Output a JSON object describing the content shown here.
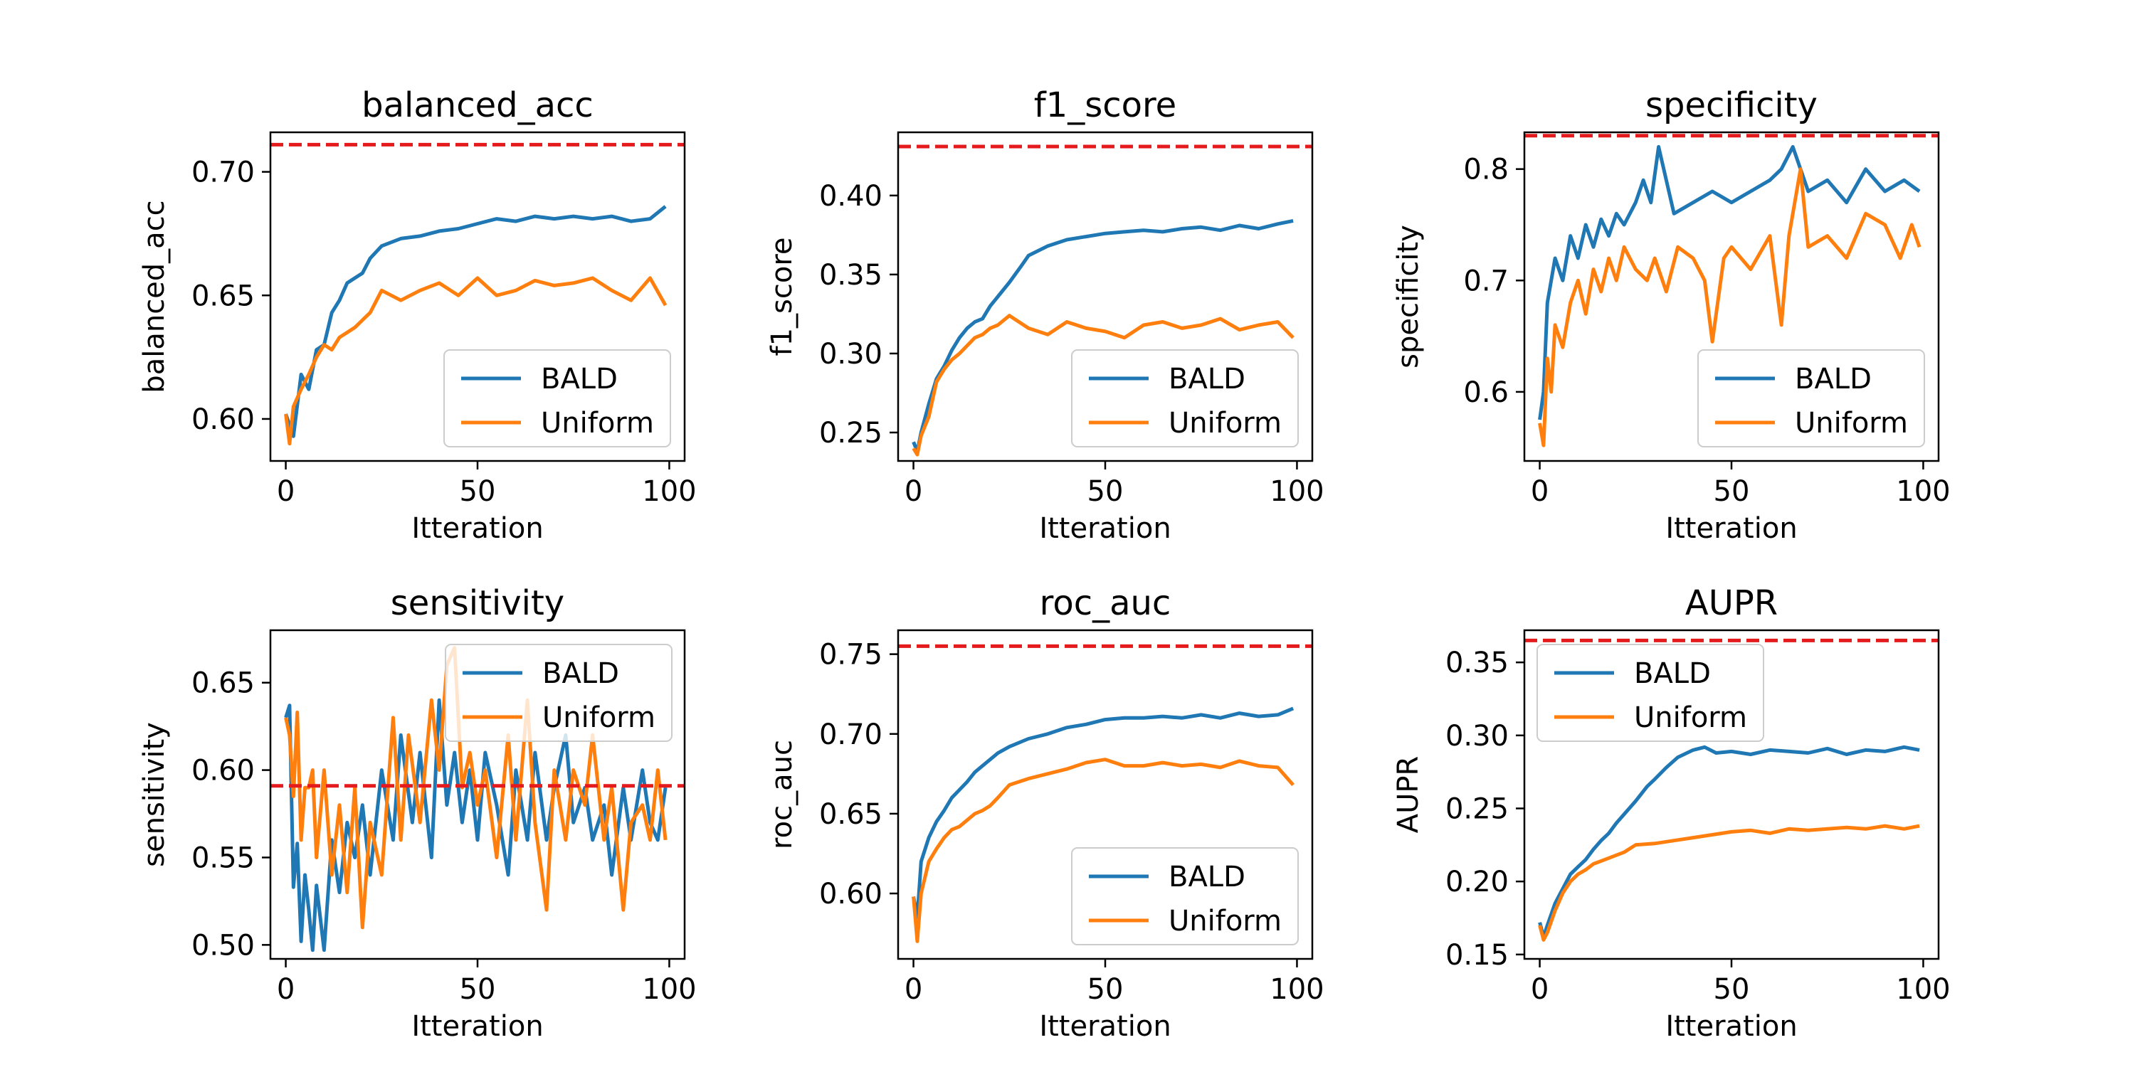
{
  "figure": {
    "legend_labels": [
      "BALD",
      "Uniform"
    ],
    "colors": {
      "BALD": "#1f77b4",
      "Uniform": "#ff7f0e",
      "reference": "#e41a1c"
    }
  },
  "chart_data": [
    {
      "type": "line",
      "title": "balanced_acc",
      "xlabel": "Itteration",
      "ylabel": "balanced_acc",
      "xlim": [
        -4,
        104
      ],
      "ylim": [
        0.583,
        0.716
      ],
      "xticks": [
        0,
        50,
        100
      ],
      "yticks": [
        0.6,
        0.65,
        0.7
      ],
      "ytick_labels": [
        "0.60",
        "0.65",
        "0.70"
      ],
      "legend_loc": "lower-right",
      "reference_line": 0.711,
      "series": [
        {
          "name": "BALD",
          "x": [
            0,
            2,
            4,
            6,
            8,
            10,
            12,
            14,
            16,
            18,
            20,
            22,
            25,
            30,
            35,
            40,
            45,
            50,
            55,
            60,
            65,
            70,
            75,
            80,
            85,
            90,
            95,
            99
          ],
          "y": [
            0.602,
            0.593,
            0.618,
            0.612,
            0.628,
            0.63,
            0.643,
            0.648,
            0.655,
            0.657,
            0.659,
            0.665,
            0.67,
            0.673,
            0.674,
            0.676,
            0.677,
            0.679,
            0.681,
            0.68,
            0.682,
            0.681,
            0.682,
            0.681,
            0.682,
            0.68,
            0.681,
            0.686
          ]
        },
        {
          "name": "Uniform",
          "x": [
            0,
            1,
            2,
            4,
            6,
            8,
            10,
            12,
            14,
            16,
            18,
            20,
            22,
            25,
            30,
            35,
            40,
            45,
            50,
            55,
            60,
            65,
            70,
            75,
            80,
            85,
            90,
            95,
            99
          ],
          "y": [
            0.602,
            0.59,
            0.605,
            0.612,
            0.618,
            0.625,
            0.63,
            0.628,
            0.633,
            0.635,
            0.637,
            0.64,
            0.643,
            0.652,
            0.648,
            0.652,
            0.655,
            0.65,
            0.657,
            0.65,
            0.652,
            0.656,
            0.654,
            0.655,
            0.657,
            0.652,
            0.648,
            0.657,
            0.646
          ]
        }
      ]
    },
    {
      "type": "line",
      "title": "f1_score",
      "xlabel": "Itteration",
      "ylabel": "f1_score",
      "xlim": [
        -4,
        104
      ],
      "ylim": [
        0.232,
        0.44
      ],
      "xticks": [
        0,
        50,
        100
      ],
      "yticks": [
        0.25,
        0.3,
        0.35,
        0.4
      ],
      "ytick_labels": [
        "0.25",
        "0.30",
        "0.35",
        "0.40"
      ],
      "legend_loc": "lower-right",
      "reference_line": 0.431,
      "series": [
        {
          "name": "BALD",
          "x": [
            0,
            1,
            2,
            4,
            6,
            8,
            10,
            12,
            14,
            16,
            18,
            20,
            22,
            25,
            28,
            30,
            35,
            40,
            45,
            50,
            55,
            60,
            65,
            70,
            75,
            80,
            85,
            90,
            95,
            99
          ],
          "y": [
            0.244,
            0.238,
            0.25,
            0.268,
            0.284,
            0.292,
            0.302,
            0.31,
            0.316,
            0.32,
            0.322,
            0.33,
            0.336,
            0.345,
            0.355,
            0.362,
            0.368,
            0.372,
            0.374,
            0.376,
            0.377,
            0.378,
            0.377,
            0.379,
            0.38,
            0.378,
            0.381,
            0.379,
            0.382,
            0.384
          ]
        },
        {
          "name": "Uniform",
          "x": [
            0,
            1,
            2,
            4,
            6,
            8,
            10,
            12,
            14,
            16,
            18,
            20,
            22,
            25,
            30,
            35,
            40,
            45,
            50,
            55,
            60,
            65,
            70,
            75,
            80,
            85,
            90,
            95,
            99
          ],
          "y": [
            0.24,
            0.236,
            0.248,
            0.26,
            0.282,
            0.29,
            0.296,
            0.3,
            0.305,
            0.31,
            0.312,
            0.316,
            0.318,
            0.324,
            0.316,
            0.312,
            0.32,
            0.316,
            0.314,
            0.31,
            0.318,
            0.32,
            0.316,
            0.318,
            0.322,
            0.315,
            0.318,
            0.32,
            0.31
          ]
        }
      ]
    },
    {
      "type": "line",
      "title": "specificity",
      "xlabel": "Itteration",
      "ylabel": "specificity",
      "xlim": [
        -4,
        104
      ],
      "ylim": [
        0.538,
        0.833
      ],
      "xticks": [
        0,
        50,
        100
      ],
      "yticks": [
        0.6,
        0.7,
        0.8
      ],
      "ytick_labels": [
        "0.6",
        "0.7",
        "0.8"
      ],
      "legend_loc": "lower-right",
      "reference_line": 0.83,
      "series": [
        {
          "name": "BALD",
          "x": [
            0,
            1,
            2,
            4,
            6,
            8,
            10,
            12,
            14,
            16,
            18,
            20,
            22,
            25,
            27,
            29,
            31,
            35,
            40,
            45,
            50,
            55,
            60,
            63,
            66,
            70,
            75,
            80,
            85,
            90,
            95,
            99
          ],
          "y": [
            0.575,
            0.6,
            0.68,
            0.72,
            0.7,
            0.74,
            0.72,
            0.75,
            0.73,
            0.755,
            0.74,
            0.76,
            0.75,
            0.77,
            0.79,
            0.77,
            0.82,
            0.76,
            0.77,
            0.78,
            0.77,
            0.78,
            0.79,
            0.8,
            0.82,
            0.78,
            0.79,
            0.77,
            0.8,
            0.78,
            0.79,
            0.78
          ]
        },
        {
          "name": "Uniform",
          "x": [
            0,
            1,
            2,
            3,
            4,
            6,
            8,
            10,
            12,
            14,
            16,
            18,
            20,
            22,
            25,
            28,
            30,
            33,
            36,
            40,
            43,
            45,
            48,
            50,
            55,
            60,
            63,
            65,
            68,
            70,
            75,
            80,
            85,
            90,
            94,
            97,
            99
          ],
          "y": [
            0.572,
            0.552,
            0.63,
            0.6,
            0.66,
            0.64,
            0.68,
            0.7,
            0.67,
            0.71,
            0.69,
            0.72,
            0.7,
            0.73,
            0.71,
            0.7,
            0.72,
            0.69,
            0.73,
            0.72,
            0.7,
            0.645,
            0.72,
            0.73,
            0.71,
            0.74,
            0.66,
            0.74,
            0.8,
            0.73,
            0.74,
            0.72,
            0.76,
            0.75,
            0.72,
            0.75,
            0.73
          ]
        }
      ]
    },
    {
      "type": "line",
      "title": "sensitivity",
      "xlabel": "Itteration",
      "ylabel": "sensitivity",
      "xlim": [
        -4,
        104
      ],
      "ylim": [
        0.492,
        0.68
      ],
      "xticks": [
        0,
        50,
        100
      ],
      "yticks": [
        0.5,
        0.55,
        0.6,
        0.65
      ],
      "ytick_labels": [
        "0.50",
        "0.55",
        "0.60",
        "0.65"
      ],
      "legend_loc": "top-right",
      "reference_line": 0.591,
      "series": [
        {
          "name": "BALD",
          "x": [
            0,
            1,
            2,
            3,
            4,
            5,
            6,
            7,
            8,
            10,
            12,
            14,
            16,
            18,
            20,
            22,
            25,
            28,
            30,
            33,
            35,
            38,
            40,
            42,
            44,
            46,
            48,
            50,
            52,
            55,
            58,
            60,
            63,
            65,
            68,
            70,
            73,
            75,
            78,
            80,
            83,
            85,
            88,
            90,
            93,
            95,
            97,
            99
          ],
          "y": [
            0.63,
            0.637,
            0.533,
            0.558,
            0.502,
            0.54,
            0.52,
            0.497,
            0.534,
            0.497,
            0.56,
            0.53,
            0.57,
            0.55,
            0.58,
            0.54,
            0.6,
            0.56,
            0.62,
            0.57,
            0.61,
            0.55,
            0.64,
            0.58,
            0.61,
            0.57,
            0.6,
            0.56,
            0.61,
            0.58,
            0.54,
            0.6,
            0.56,
            0.61,
            0.56,
            0.59,
            0.62,
            0.57,
            0.59,
            0.56,
            0.58,
            0.54,
            0.59,
            0.56,
            0.6,
            0.57,
            0.56,
            0.59
          ]
        },
        {
          "name": "Uniform",
          "x": [
            0,
            1,
            2,
            3,
            4,
            5,
            6,
            7,
            8,
            10,
            12,
            14,
            16,
            18,
            20,
            22,
            25,
            28,
            30,
            32,
            35,
            38,
            40,
            42,
            44,
            46,
            48,
            50,
            52,
            55,
            58,
            60,
            63,
            65,
            68,
            70,
            73,
            75,
            78,
            80,
            83,
            85,
            88,
            90,
            93,
            95,
            97,
            99
          ],
          "y": [
            0.63,
            0.62,
            0.585,
            0.633,
            0.56,
            0.59,
            0.59,
            0.6,
            0.55,
            0.6,
            0.54,
            0.58,
            0.53,
            0.59,
            0.51,
            0.57,
            0.54,
            0.63,
            0.56,
            0.62,
            0.57,
            0.64,
            0.6,
            0.66,
            0.67,
            0.59,
            0.61,
            0.58,
            0.6,
            0.55,
            0.62,
            0.56,
            0.64,
            0.57,
            0.52,
            0.6,
            0.56,
            0.6,
            0.58,
            0.62,
            0.56,
            0.59,
            0.52,
            0.57,
            0.58,
            0.56,
            0.6,
            0.56
          ]
        }
      ]
    },
    {
      "type": "line",
      "title": "roc_auc",
      "xlabel": "Itteration",
      "ylabel": "roc_auc",
      "xlim": [
        -4,
        104
      ],
      "ylim": [
        0.559,
        0.765
      ],
      "xticks": [
        0,
        50,
        100
      ],
      "yticks": [
        0.6,
        0.65,
        0.7,
        0.75
      ],
      "ytick_labels": [
        "0.60",
        "0.65",
        "0.70",
        "0.75"
      ],
      "legend_loc": "lower-right",
      "reference_line": 0.755,
      "series": [
        {
          "name": "BALD",
          "x": [
            0,
            1,
            2,
            4,
            6,
            8,
            10,
            12,
            14,
            16,
            18,
            20,
            22,
            25,
            30,
            35,
            40,
            45,
            50,
            55,
            60,
            65,
            70,
            75,
            80,
            85,
            90,
            95,
            99
          ],
          "y": [
            0.598,
            0.585,
            0.62,
            0.635,
            0.645,
            0.652,
            0.66,
            0.665,
            0.67,
            0.676,
            0.68,
            0.684,
            0.688,
            0.692,
            0.697,
            0.7,
            0.704,
            0.706,
            0.709,
            0.71,
            0.71,
            0.711,
            0.71,
            0.712,
            0.71,
            0.713,
            0.711,
            0.712,
            0.716
          ]
        },
        {
          "name": "Uniform",
          "x": [
            0,
            1,
            2,
            4,
            6,
            8,
            10,
            12,
            14,
            16,
            18,
            20,
            22,
            25,
            30,
            35,
            40,
            45,
            50,
            55,
            60,
            65,
            70,
            75,
            80,
            85,
            90,
            95,
            99
          ],
          "y": [
            0.598,
            0.57,
            0.6,
            0.62,
            0.628,
            0.635,
            0.64,
            0.642,
            0.646,
            0.65,
            0.652,
            0.655,
            0.66,
            0.668,
            0.672,
            0.675,
            0.678,
            0.682,
            0.684,
            0.68,
            0.68,
            0.682,
            0.68,
            0.681,
            0.679,
            0.683,
            0.68,
            0.679,
            0.668
          ]
        }
      ]
    },
    {
      "type": "line",
      "title": "AUPR",
      "xlabel": "Itteration",
      "ylabel": "AUPR",
      "xlim": [
        -4,
        104
      ],
      "ylim": [
        0.147,
        0.372
      ],
      "xticks": [
        0,
        50,
        100
      ],
      "yticks": [
        0.15,
        0.2,
        0.25,
        0.3,
        0.35
      ],
      "ytick_labels": [
        "0.15",
        "0.20",
        "0.25",
        "0.30",
        "0.35"
      ],
      "legend_loc": "top-left",
      "reference_line": 0.365,
      "series": [
        {
          "name": "BALD",
          "x": [
            0,
            1,
            2,
            4,
            6,
            8,
            10,
            12,
            14,
            16,
            18,
            20,
            22,
            25,
            28,
            30,
            33,
            36,
            40,
            43,
            46,
            50,
            55,
            60,
            65,
            70,
            75,
            80,
            85,
            90,
            95,
            99
          ],
          "y": [
            0.172,
            0.162,
            0.17,
            0.185,
            0.195,
            0.205,
            0.21,
            0.215,
            0.222,
            0.228,
            0.233,
            0.24,
            0.246,
            0.255,
            0.265,
            0.27,
            0.278,
            0.285,
            0.29,
            0.292,
            0.288,
            0.289,
            0.287,
            0.29,
            0.289,
            0.288,
            0.291,
            0.287,
            0.29,
            0.289,
            0.292,
            0.29
          ]
        },
        {
          "name": "Uniform",
          "x": [
            0,
            1,
            2,
            4,
            6,
            8,
            10,
            12,
            14,
            16,
            18,
            20,
            22,
            25,
            30,
            35,
            40,
            45,
            50,
            55,
            60,
            65,
            70,
            75,
            80,
            85,
            90,
            95,
            99
          ],
          "y": [
            0.17,
            0.16,
            0.165,
            0.18,
            0.192,
            0.2,
            0.205,
            0.208,
            0.212,
            0.214,
            0.216,
            0.218,
            0.22,
            0.225,
            0.226,
            0.228,
            0.23,
            0.232,
            0.234,
            0.235,
            0.233,
            0.236,
            0.235,
            0.236,
            0.237,
            0.236,
            0.238,
            0.236,
            0.238
          ]
        }
      ]
    }
  ]
}
